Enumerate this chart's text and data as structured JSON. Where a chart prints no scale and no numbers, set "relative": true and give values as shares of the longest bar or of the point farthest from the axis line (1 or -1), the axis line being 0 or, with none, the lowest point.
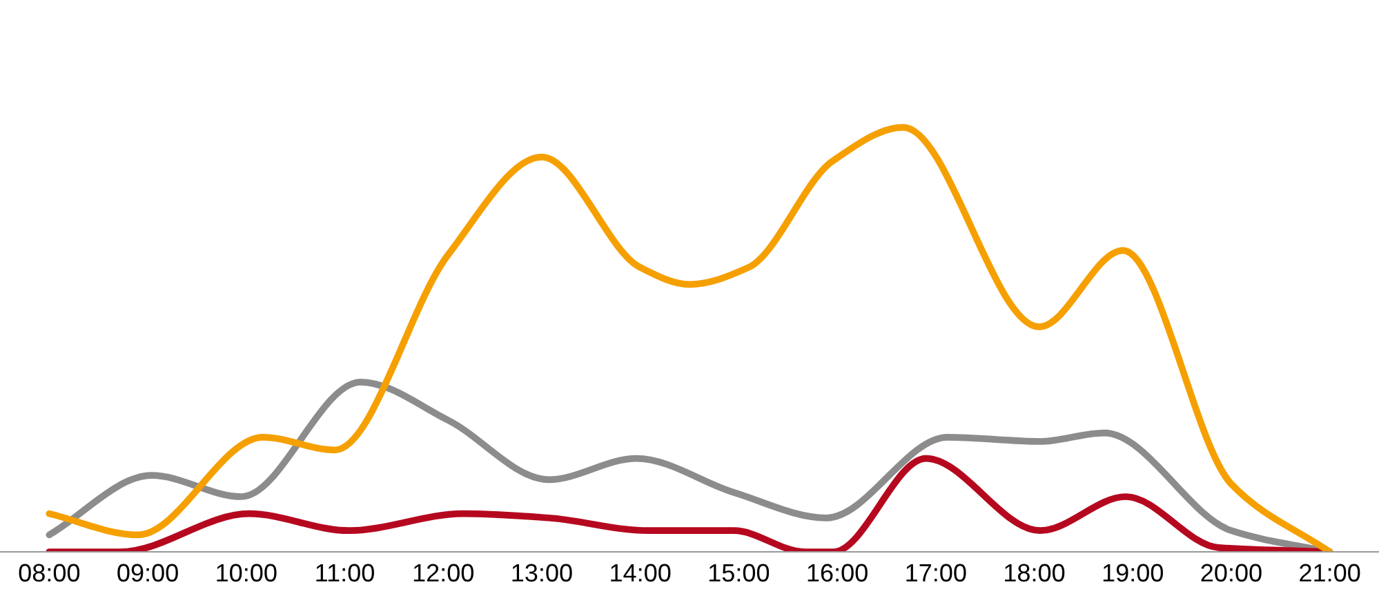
{
  "chart_data": {
    "type": "line",
    "relative": true,
    "xlim": [
      7.5,
      21.5
    ],
    "xticks": [
      {
        "value": 8,
        "label": "08:00"
      },
      {
        "value": 9,
        "label": "09:00"
      },
      {
        "value": 10,
        "label": "10:00"
      },
      {
        "value": 11,
        "label": "11:00"
      },
      {
        "value": 12,
        "label": "12:00"
      },
      {
        "value": 13,
        "label": "13:00"
      },
      {
        "value": 14,
        "label": "14:00"
      },
      {
        "value": 15,
        "label": "15:00"
      },
      {
        "value": 16,
        "label": "16:00"
      },
      {
        "value": 17,
        "label": "17:00"
      },
      {
        "value": 18,
        "label": "18:00"
      },
      {
        "value": 19,
        "label": "19:00"
      },
      {
        "value": 20,
        "label": "20:00"
      },
      {
        "value": 21,
        "label": "21:00"
      }
    ],
    "grid": false,
    "legend": false,
    "marker": "none",
    "line_style": "solid",
    "tick_labels": "x",
    "series": [
      {
        "color": "#8c8c8c",
        "x": [
          8.0,
          9.04,
          9.95,
          11.16,
          12.05,
          13.07,
          13.96,
          14.95,
          15.89,
          17.12,
          18.06,
          18.71,
          20.0,
          21.0
        ],
        "values": [
          0.04,
          0.18,
          0.13,
          0.4,
          0.31,
          0.17,
          0.22,
          0.14,
          0.08,
          0.27,
          0.26,
          0.28,
          0.05,
          0
        ]
      },
      {
        "color": "#b5081f",
        "x": [
          8.0,
          8.72,
          10.03,
          11.04,
          12.2,
          13.07,
          14.08,
          14.95,
          15.67,
          15.96,
          16.9,
          18.06,
          18.93,
          19.87,
          21.0
        ],
        "values": [
          0,
          0,
          0.09,
          0.05,
          0.09,
          0.08,
          0.05,
          0.05,
          0,
          0,
          0.22,
          0.05,
          0.13,
          0.01,
          0
        ]
      },
      {
        "color": "#f5a000",
        "x": [
          8.0,
          8.9,
          10.17,
          10.9,
          12.05,
          13.0,
          14.0,
          14.5,
          15.1,
          15.95,
          16.67,
          18.05,
          18.9,
          20.0,
          21.0
        ],
        "values": [
          0.09,
          0.04,
          0.27,
          0.24,
          0.7,
          0.93,
          0.67,
          0.63,
          0.67,
          0.92,
          1.0,
          0.53,
          0.71,
          0.16,
          0
        ]
      }
    ]
  }
}
